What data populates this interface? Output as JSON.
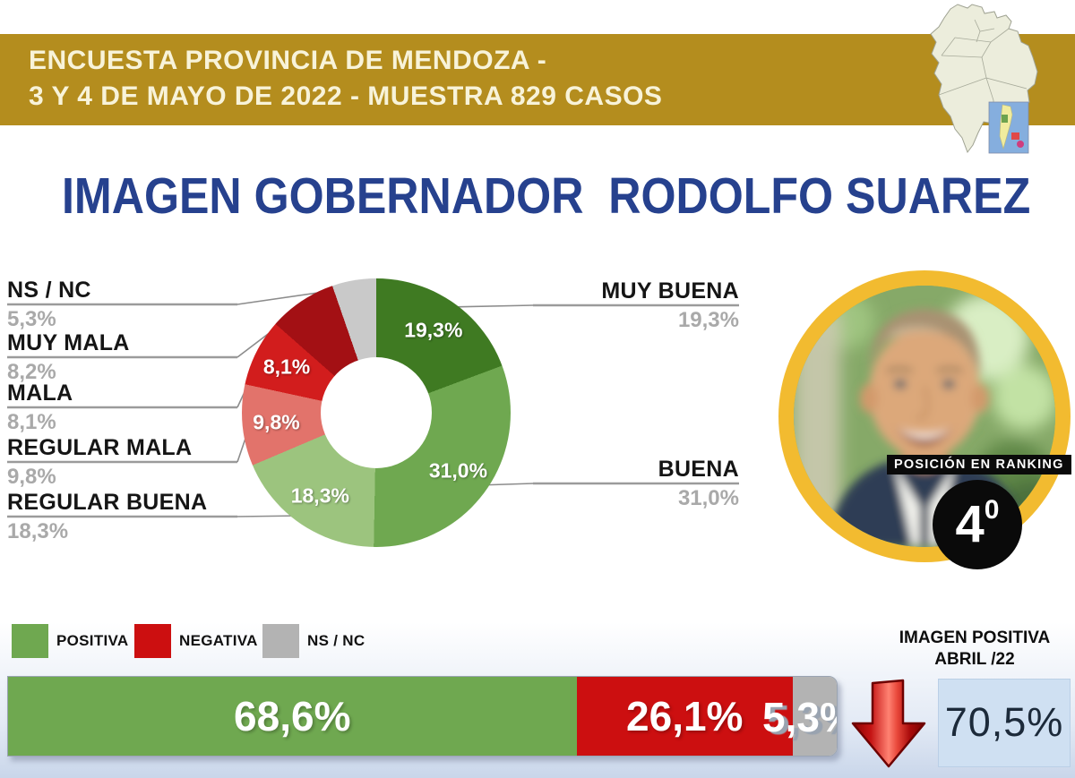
{
  "banner": {
    "line1": "ENCUESTA PROVINCIA DE MENDOZA -",
    "line2": "3 Y 4 DE MAYO DE 2022 - MUESTRA 829 CASOS",
    "bg_color": "#b48d1e",
    "text_color": "#f8f3d9"
  },
  "title": "IMAGEN GOBERNADOR  RODOLFO SUAREZ",
  "title_color": "#26418e",
  "chart_data": [
    {
      "type": "pie",
      "subtype": "donut",
      "title": "IMAGEN GOBERNADOR RODOLFO SUAREZ",
      "direction": "clockwise",
      "start_angle_deg": 0,
      "segments": [
        {
          "label": "MUY BUENA",
          "value": 19.3,
          "display": "19,3%",
          "color": "#3f7a22",
          "inner_label": "19,3%",
          "callout": "right"
        },
        {
          "label": "BUENA",
          "value": 31.0,
          "display": "31,0%",
          "color": "#6fa850",
          "inner_label": "31,0%",
          "callout": "right"
        },
        {
          "label": "REGULAR BUENA",
          "value": 18.3,
          "display": "18,3%",
          "color": "#9cc47e",
          "inner_label": "18,3%",
          "callout": "left"
        },
        {
          "label": "REGULAR MALA",
          "value": 9.8,
          "display": "9,8%",
          "color": "#e2736b",
          "inner_label": "9,8%",
          "callout": "left"
        },
        {
          "label": "MALA",
          "value": 8.1,
          "display": "8,1%",
          "color": "#d21d1d",
          "inner_label": "8,1%",
          "callout": "left"
        },
        {
          "label": "MUY MALA",
          "value": 8.2,
          "display": "8,2%",
          "color": "#a31014",
          "inner_label": null,
          "callout": "left"
        },
        {
          "label": "NS / NC",
          "value": 5.3,
          "display": "5,3%",
          "color": "#c9c9c9",
          "inner_label": null,
          "callout": "left"
        }
      ]
    },
    {
      "type": "bar",
      "subtype": "stacked-horizontal",
      "segments": [
        {
          "label": "POSITIVA",
          "value": 68.6,
          "display": "68,6%",
          "color": "#6fa850"
        },
        {
          "label": "NEGATIVA",
          "value": 26.1,
          "display": "26,1%",
          "color": "#cc0f10"
        },
        {
          "label": "NS / NC",
          "value": 5.3,
          "display": "5,3%",
          "color": "#b3b3b3"
        }
      ]
    }
  ],
  "legend": [
    {
      "label": "POSITIVA",
      "color": "#6fa850"
    },
    {
      "label": "NEGATIVA",
      "color": "#cc0f10"
    },
    {
      "label": "NS / NC",
      "color": "#b3b3b3"
    }
  ],
  "ranking": {
    "label": "POSICIÓN EN RANKING",
    "number": "4",
    "ordinal": "0"
  },
  "comparison": {
    "line1": "IMAGEN POSITIVA",
    "line2": "ABRIL /22",
    "value": "70,5%",
    "trend": "down",
    "box_color": "#cfe0f2"
  },
  "icons": {
    "map": "mendoza-province-map",
    "trend": "red-down-arrow",
    "portrait": "governor-photo"
  }
}
